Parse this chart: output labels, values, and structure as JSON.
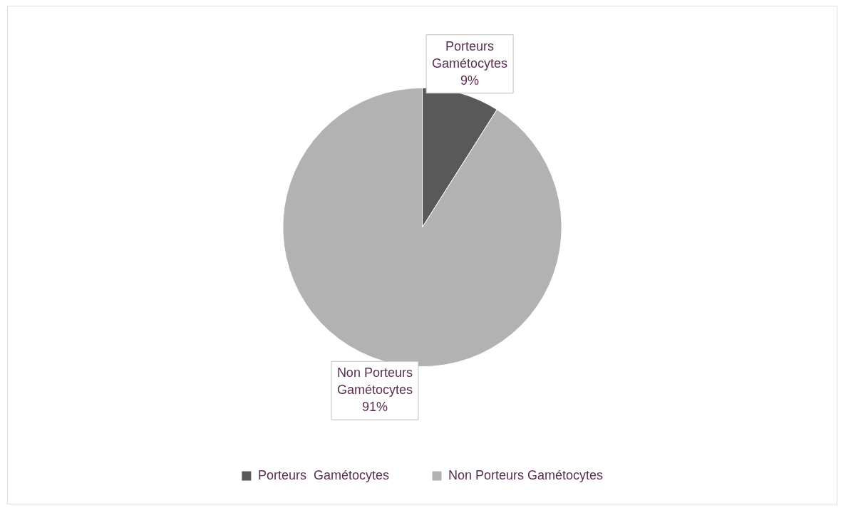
{
  "chart_data": {
    "type": "pie",
    "categories": [
      "Porteurs  Gamétocytes",
      "Non Porteurs Gamétocytes"
    ],
    "values": [
      9,
      91
    ],
    "colors": [
      "#595959",
      "#b2b2b2"
    ],
    "value_labels": [
      "9%",
      "91%"
    ],
    "legend": "bottom"
  }
}
